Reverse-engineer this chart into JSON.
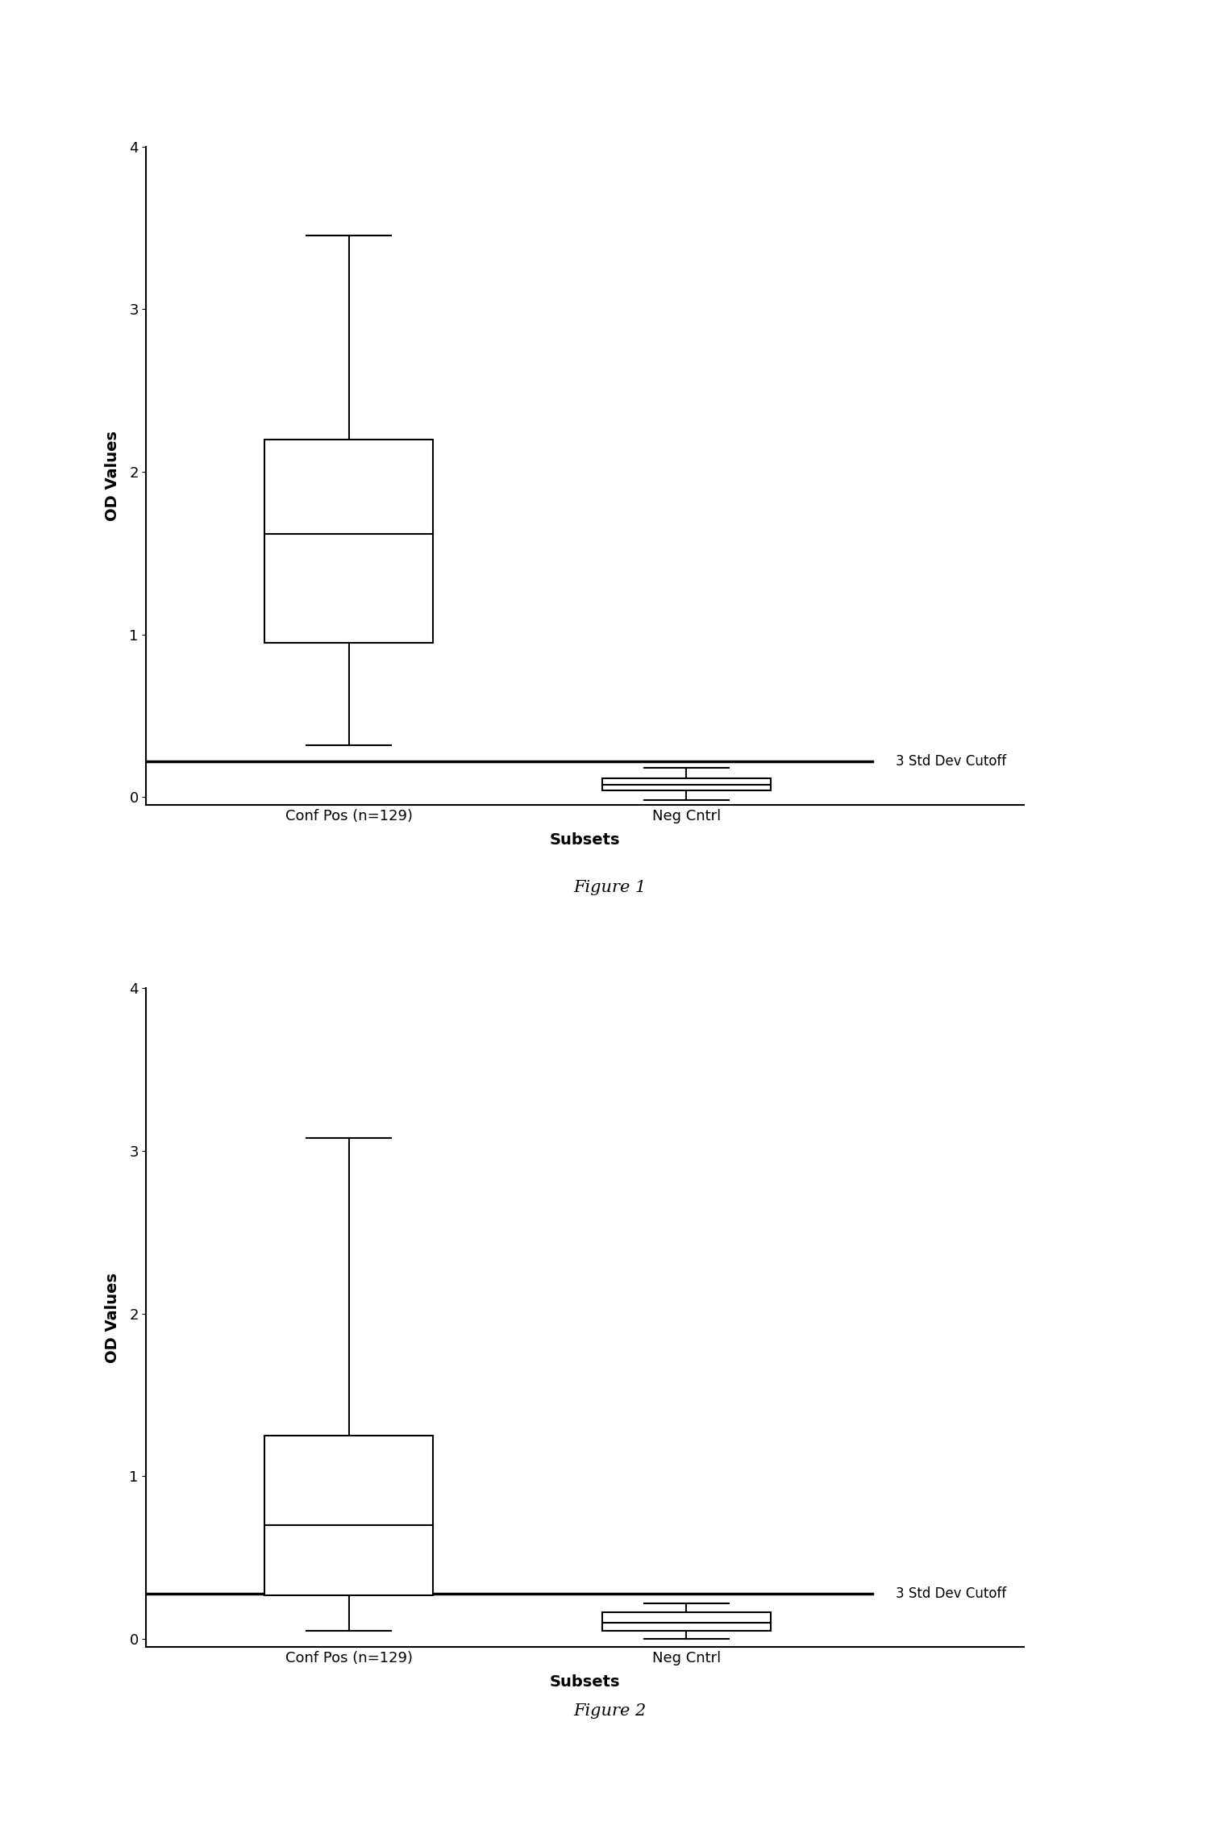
{
  "fig1": {
    "title": "Figure 1",
    "ylabel": "OD Values",
    "xlabel": "Subsets",
    "ylim": [
      -0.05,
      4.0
    ],
    "yticks": [
      0,
      1,
      2,
      3,
      4
    ],
    "cutoff_line": 0.22,
    "cutoff_label": "3 Std Dev Cutoff",
    "groups": [
      {
        "label": "Conf Pos (n=129)",
        "x": 1,
        "q1": 0.95,
        "median": 1.62,
        "q3": 2.2,
        "whisker_low": 0.32,
        "whisker_high": 3.45
      },
      {
        "label": "Neg Cntrl",
        "x": 2,
        "q1": 0.04,
        "median": 0.075,
        "q3": 0.115,
        "whisker_low": -0.02,
        "whisker_high": 0.18
      }
    ],
    "box_width": 0.5
  },
  "fig2": {
    "title": "Figure 2",
    "ylabel": "OD Values",
    "xlabel": "Subsets",
    "ylim": [
      -0.05,
      4.0
    ],
    "yticks": [
      0,
      1,
      2,
      3,
      4
    ],
    "cutoff_line": 0.28,
    "cutoff_label": "3 Std Dev Cutoff",
    "groups": [
      {
        "label": "Conf Pos (n=129)",
        "x": 1,
        "q1": 0.27,
        "median": 0.7,
        "q3": 1.25,
        "whisker_low": 0.05,
        "whisker_high": 3.08
      },
      {
        "label": "Neg Cntrl",
        "x": 2,
        "q1": 0.05,
        "median": 0.1,
        "q3": 0.165,
        "whisker_low": 0.0,
        "whisker_high": 0.22
      }
    ],
    "box_width": 0.5
  },
  "background_color": "#ffffff",
  "box_color": "#000000",
  "line_color": "#000000",
  "title_fontsize": 15,
  "label_fontsize": 14,
  "tick_fontsize": 13
}
